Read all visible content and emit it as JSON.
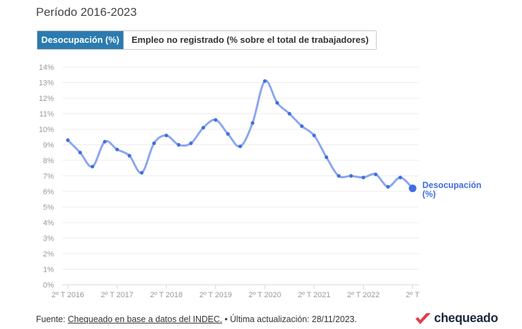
{
  "header": {
    "period": "Período 2016-2023"
  },
  "tabs": [
    {
      "label": "Desocupación (%)",
      "active": true
    },
    {
      "label": "Empleo no registrado (% sobre el total de trabajadores)",
      "active": false
    }
  ],
  "footer": {
    "prefix": "Fuente: ",
    "source_link": "Chequeado en base a datos del INDEC.",
    "updated": " • Última actualización: 28/11/2023."
  },
  "brand": {
    "name": "chequeado",
    "accent": "#e63946"
  },
  "colors": {
    "line": "#8aa6ee",
    "point": "#3f6ee0",
    "grid": "#ececec",
    "tab_active": "#2b7bb0"
  },
  "chart_data": {
    "type": "line",
    "ylim": [
      0,
      14
    ],
    "y_ticks": [
      "0%",
      "1%",
      "2%",
      "3%",
      "4%",
      "5%",
      "6%",
      "7%",
      "8%",
      "9%",
      "10%",
      "11%",
      "12%",
      "13%",
      "14%"
    ],
    "x_tick_labels": [
      "2º T 2016",
      "2º T 2017",
      "2º T 2018",
      "2º T 2019",
      "2º T 2020",
      "2º T 2021",
      "2º T 2022",
      "2º T"
    ],
    "x_tick_index": [
      0,
      4,
      8,
      12,
      16,
      20,
      24,
      28
    ],
    "grid": true,
    "series": [
      {
        "name": "Desocupación (%)",
        "values": [
          9.3,
          8.5,
          7.6,
          9.2,
          8.7,
          8.3,
          7.2,
          9.1,
          9.6,
          9.0,
          9.1,
          10.1,
          10.6,
          9.7,
          8.9,
          10.4,
          13.1,
          11.7,
          11.0,
          10.2,
          9.6,
          8.2,
          7.0,
          7.0,
          6.9,
          7.1,
          6.3,
          6.9,
          6.2
        ]
      }
    ]
  }
}
